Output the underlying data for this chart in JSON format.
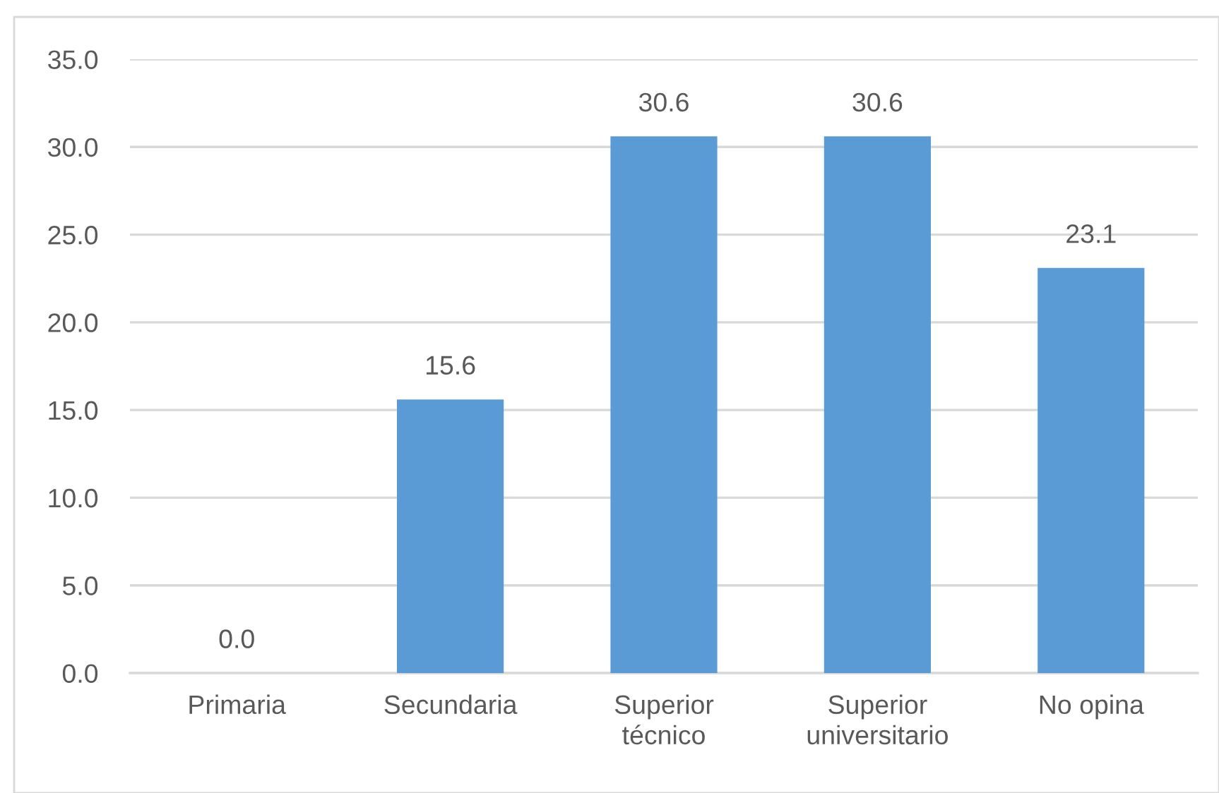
{
  "chart_data": {
    "type": "bar",
    "categories": [
      "Primaria",
      "Secundaria",
      "Superior técnico",
      "Superior universitario",
      "No opina"
    ],
    "values": [
      0.0,
      15.6,
      30.6,
      30.6,
      23.1
    ],
    "value_labels": [
      "0.0",
      "15.6",
      "30.6",
      "30.6",
      "23.1"
    ],
    "color": "#5b9bd5",
    "ylim": [
      0,
      35
    ],
    "yticks": [
      {
        "value": 0,
        "label": "0.0"
      },
      {
        "value": 5,
        "label": "5.0"
      },
      {
        "value": 10,
        "label": "10.0"
      },
      {
        "value": 15,
        "label": "15.0"
      },
      {
        "value": 20,
        "label": "20.0"
      },
      {
        "value": 25,
        "label": "25.0"
      },
      {
        "value": 30,
        "label": "30.0"
      },
      {
        "value": 35,
        "label": "35.0"
      }
    ],
    "grid": "y"
  }
}
